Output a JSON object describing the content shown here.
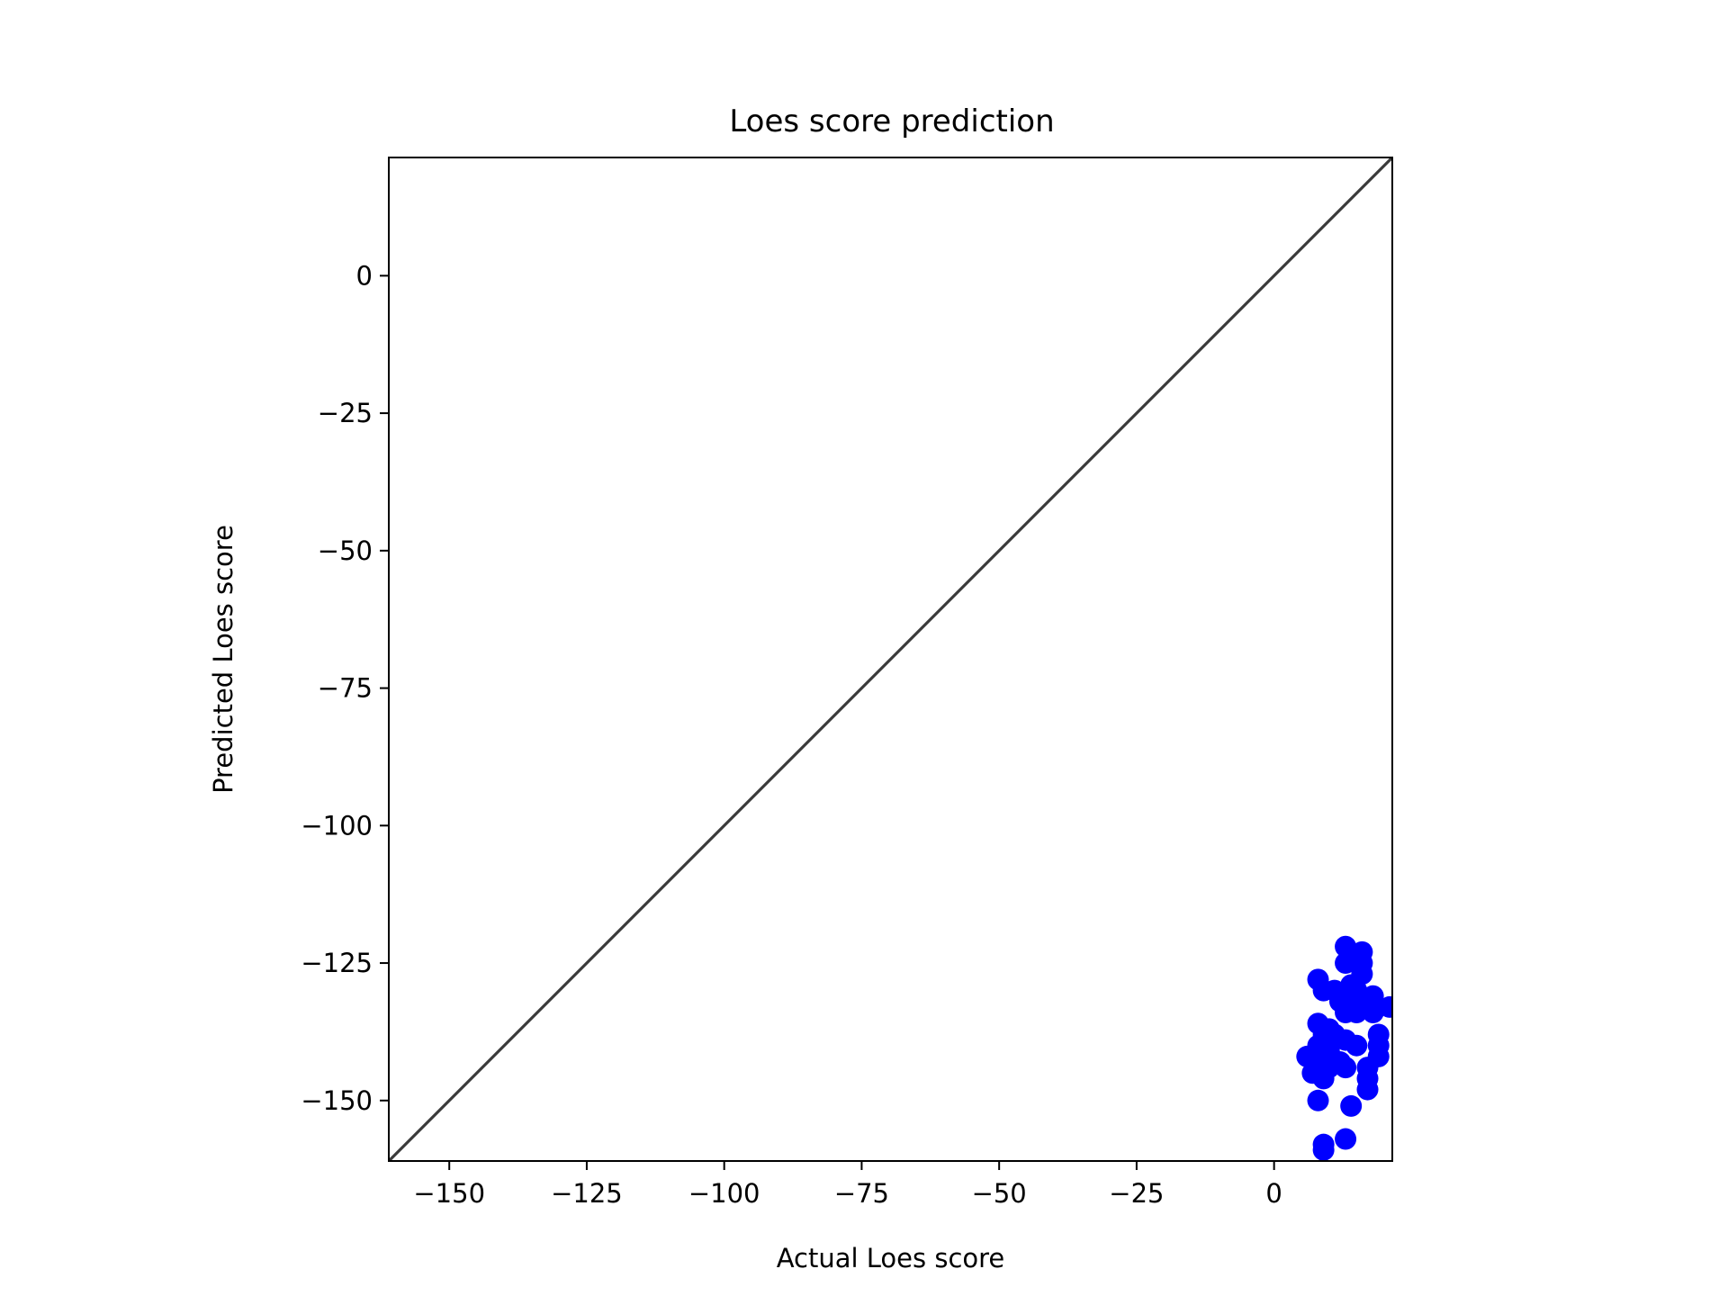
{
  "chart_data": {
    "type": "scatter",
    "title": "Loes score prediction",
    "xlabel": "Actual Loes score",
    "ylabel": "Predicted Loes score",
    "xlim": [
      -161,
      21.5
    ],
    "ylim": [
      -161,
      21.5
    ],
    "xticks": [
      -150,
      -125,
      -100,
      -75,
      -50,
      -25,
      0
    ],
    "yticks": [
      0,
      -25,
      -50,
      -75,
      -100,
      -125,
      -150
    ],
    "xtick_labels": [
      "−150",
      "−125",
      "−100",
      "−75",
      "−50",
      "−25",
      "0"
    ],
    "ytick_labels": [
      "0",
      "−25",
      "−50",
      "−75",
      "−100",
      "−125",
      "−150"
    ],
    "grid": false,
    "legend": null,
    "reference_line": {
      "type": "identity",
      "from": [
        -161,
        -161
      ],
      "to": [
        21.5,
        21.5
      ],
      "color": "#3a3a3a"
    },
    "series": [
      {
        "color": "#0000ff",
        "points": [
          {
            "x": 13,
            "y": -122
          },
          {
            "x": 16,
            "y": -123
          },
          {
            "x": 13,
            "y": -125
          },
          {
            "x": 16,
            "y": -125
          },
          {
            "x": 16,
            "y": -127
          },
          {
            "x": 8,
            "y": -128
          },
          {
            "x": 14,
            "y": -129
          },
          {
            "x": 9,
            "y": -130
          },
          {
            "x": 11,
            "y": -130
          },
          {
            "x": 15,
            "y": -130
          },
          {
            "x": 13,
            "y": -131
          },
          {
            "x": 18,
            "y": -131
          },
          {
            "x": 12,
            "y": -132
          },
          {
            "x": 14,
            "y": -133
          },
          {
            "x": 17,
            "y": -133
          },
          {
            "x": 21,
            "y": -133
          },
          {
            "x": 13,
            "y": -134
          },
          {
            "x": 15,
            "y": -134
          },
          {
            "x": 18,
            "y": -134
          },
          {
            "x": 8,
            "y": -136
          },
          {
            "x": 10,
            "y": -137
          },
          {
            "x": 9,
            "y": -138
          },
          {
            "x": 11,
            "y": -138
          },
          {
            "x": 19,
            "y": -138
          },
          {
            "x": 13,
            "y": -139
          },
          {
            "x": 15,
            "y": -140
          },
          {
            "x": 8,
            "y": -140
          },
          {
            "x": 19,
            "y": -140
          },
          {
            "x": 10,
            "y": -141
          },
          {
            "x": 9,
            "y": -142
          },
          {
            "x": 6,
            "y": -142
          },
          {
            "x": 19,
            "y": -142
          },
          {
            "x": 12,
            "y": -143
          },
          {
            "x": 10,
            "y": -144
          },
          {
            "x": 13,
            "y": -144
          },
          {
            "x": 17,
            "y": -144
          },
          {
            "x": 7,
            "y": -145
          },
          {
            "x": 9,
            "y": -146
          },
          {
            "x": 17,
            "y": -146
          },
          {
            "x": 17,
            "y": -148
          },
          {
            "x": 8,
            "y": -150
          },
          {
            "x": 14,
            "y": -151
          },
          {
            "x": 13,
            "y": -157
          },
          {
            "x": 9,
            "y": -158
          },
          {
            "x": 9,
            "y": -159
          }
        ]
      }
    ]
  }
}
